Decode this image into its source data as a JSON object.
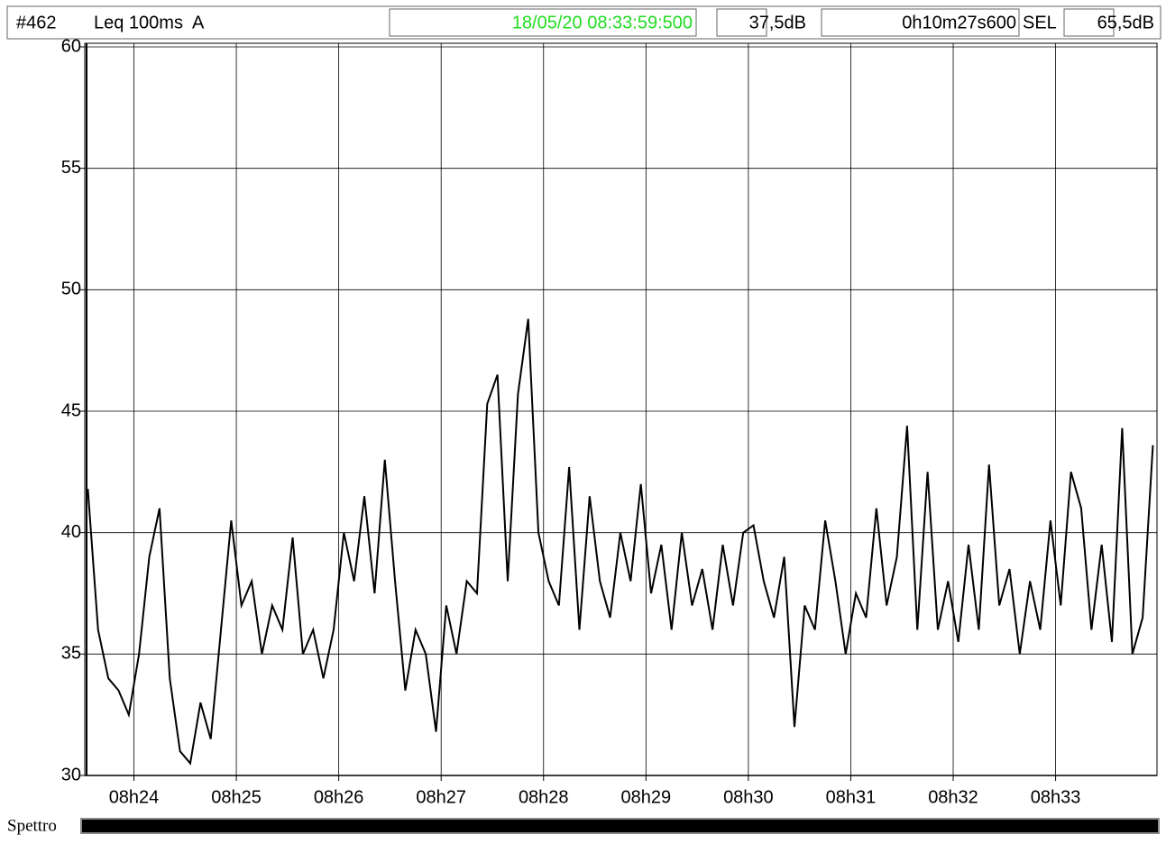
{
  "header": {
    "id": "#462",
    "mode": "Leq 100ms  A",
    "timestamp": "18/05/20 08:33:59:500",
    "level": "37,5dB",
    "duration": "0h10m27s600",
    "sel_label": "SEL",
    "sel": "65,5dB"
  },
  "footer": {
    "label": "Spettro"
  },
  "chart_data": {
    "type": "line",
    "color": "#000000",
    "grid": true,
    "x": [
      503.55,
      503.65,
      503.75,
      503.85,
      503.95,
      504.05,
      504.15,
      504.25,
      504.35,
      504.45,
      504.55,
      504.65,
      504.75,
      504.85,
      504.95,
      505.05,
      505.15,
      505.25,
      505.35,
      505.45,
      505.55,
      505.65,
      505.75,
      505.85,
      505.95,
      506.05,
      506.15,
      506.25,
      506.35,
      506.45,
      506.55,
      506.65,
      506.75,
      506.85,
      506.95,
      507.05,
      507.15,
      507.25,
      507.35,
      507.45,
      507.55,
      507.65,
      507.75,
      507.85,
      507.95,
      508.05,
      508.15,
      508.25,
      508.35,
      508.45,
      508.55,
      508.65,
      508.75,
      508.85,
      508.95,
      509.05,
      509.15,
      509.25,
      509.35,
      509.45,
      509.55,
      509.65,
      509.75,
      509.85,
      509.95,
      510.05,
      510.15,
      510.25,
      510.35,
      510.45,
      510.55,
      510.65,
      510.75,
      510.85,
      510.95,
      511.05,
      511.15,
      511.25,
      511.35,
      511.45,
      511.55,
      511.65,
      511.75,
      511.85,
      511.95,
      512.05,
      512.15,
      512.25,
      512.35,
      512.45,
      512.55,
      512.65,
      512.75,
      512.85,
      512.95,
      513.05,
      513.15,
      513.25,
      513.35,
      513.45,
      513.55,
      513.65,
      513.75,
      513.85,
      513.95
    ],
    "values": [
      41.8,
      36,
      34,
      33.5,
      32.5,
      35,
      39,
      41,
      34,
      31,
      30.5,
      33,
      31.5,
      36,
      40.5,
      37,
      38,
      35,
      37,
      36,
      39.8,
      35,
      36,
      34,
      36,
      40,
      38,
      41.5,
      37.5,
      43,
      38,
      33.5,
      36,
      35,
      31.8,
      37,
      35,
      38,
      37.5,
      45.3,
      46.5,
      38,
      45.7,
      48.8,
      40,
      38,
      37,
      42.7,
      36,
      41.5,
      38,
      36.5,
      40,
      38,
      42,
      37.5,
      39.5,
      36,
      40,
      37,
      38.5,
      36,
      39.5,
      37,
      40,
      40.3,
      38,
      36.5,
      39,
      32,
      37,
      36,
      40.5,
      38,
      35,
      37.5,
      36.5,
      41,
      37,
      39,
      44.4,
      36,
      42.5,
      36,
      38,
      35.5,
      39.5,
      36,
      42.8,
      37,
      38.5,
      35,
      38,
      36,
      40.5,
      37,
      42.5,
      41,
      36,
      39.5,
      35.5,
      44.3,
      35,
      36.5,
      43.6
    ],
    "xlim": [
      503.52,
      513.99
    ],
    "xticks": [
      {
        "value": 504,
        "label": "08h24"
      },
      {
        "value": 505,
        "label": "08h25"
      },
      {
        "value": 506,
        "label": "08h26"
      },
      {
        "value": 507,
        "label": "08h27"
      },
      {
        "value": 508,
        "label": "08h28"
      },
      {
        "value": 509,
        "label": "08h29"
      },
      {
        "value": 510,
        "label": "08h30"
      },
      {
        "value": 511,
        "label": "08h31"
      },
      {
        "value": 512,
        "label": "08h32"
      },
      {
        "value": 513,
        "label": "08h33"
      }
    ],
    "ylim": [
      30,
      60
    ],
    "yticks": [
      30,
      35,
      40,
      45,
      50,
      55,
      60
    ]
  }
}
